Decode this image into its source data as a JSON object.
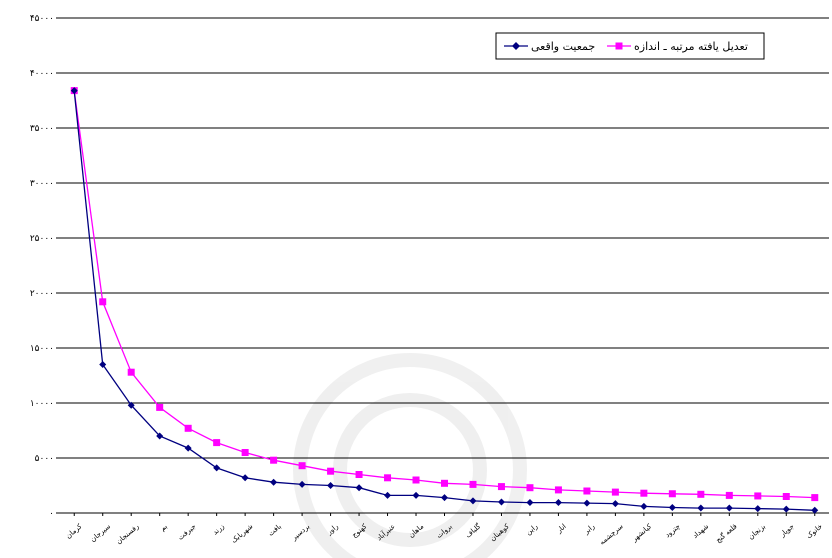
{
  "chart_data": {
    "type": "line",
    "title": "",
    "xlabel": "",
    "ylabel": "",
    "ylim": [
      0,
      45000
    ],
    "yticks": [
      0,
      5000,
      10000,
      15000,
      20000,
      25000,
      30000,
      35000,
      40000,
      45000
    ],
    "ytick_labels": [
      "۰",
      "۵۰۰۰",
      "۱۰۰۰۰",
      "۱۵۰۰۰",
      "۲۰۰۰۰",
      "۲۵۰۰۰",
      "۳۰۰۰۰",
      "۳۵۰۰۰",
      "۴۰۰۰۰",
      "۴۵۰۰۰"
    ],
    "grid": true,
    "legend_position": "top-right",
    "categories": [
      "کرمان",
      "سیرجان",
      "رفسنجان",
      "بم",
      "جیرفت",
      "زرند",
      "شهربابک",
      "بافت",
      "بردسیر",
      "راور",
      "کهنوج",
      "عنبرآباد",
      "ماهان",
      "بروات",
      "گلباف",
      "کوهبنان",
      "راین",
      "انار",
      "رابر",
      "سرچشمه",
      "کیانشهر",
      "چترود",
      "شهداد",
      "قلعه گنج",
      "بزنجان",
      "جوپار",
      "خانوک"
    ],
    "series": [
      {
        "name": "جمعیت واقعی",
        "color": "#000080",
        "marker": "diamond",
        "values": [
          38400,
          13500,
          9800,
          7000,
          5900,
          4100,
          3200,
          2800,
          2600,
          2500,
          2300,
          1600,
          1600,
          1400,
          1100,
          1000,
          950,
          950,
          900,
          850,
          600,
          500,
          450,
          450,
          400,
          350,
          250
        ]
      },
      {
        "name": "تعدیل یافته مرتبه ـ اندازه",
        "color": "#ff00ff",
        "marker": "square",
        "values": [
          38400,
          19200,
          12800,
          9600,
          7700,
          6400,
          5500,
          4800,
          4300,
          3800,
          3500,
          3200,
          3000,
          2700,
          2600,
          2400,
          2300,
          2100,
          2000,
          1900,
          1800,
          1750,
          1700,
          1600,
          1550,
          1500,
          1400
        ]
      }
    ]
  }
}
